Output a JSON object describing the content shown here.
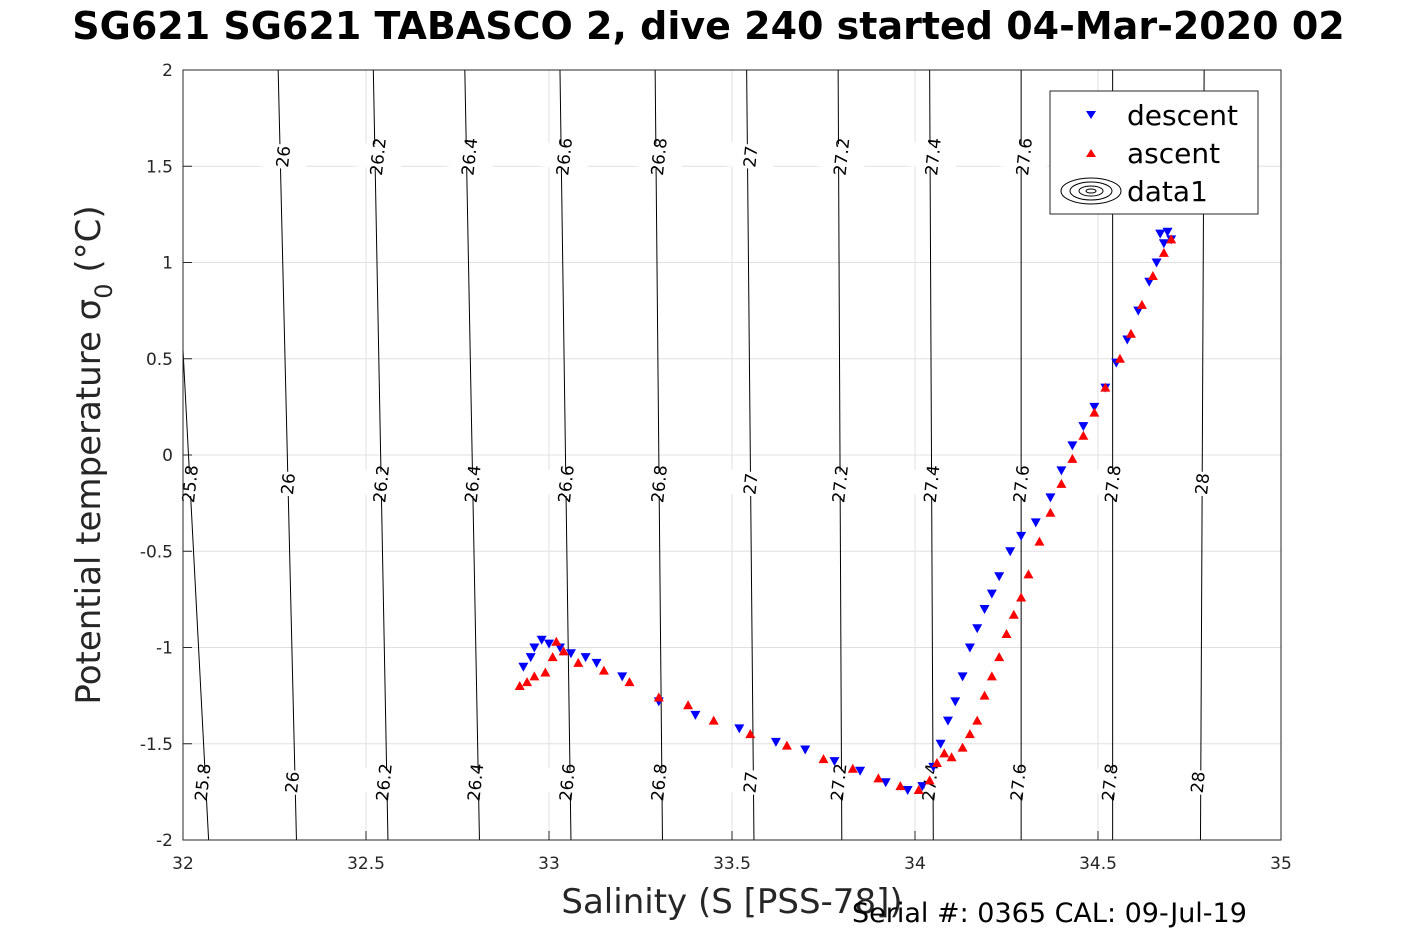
{
  "chart_data": {
    "type": "scatter",
    "title": "SG621 SG621 TABASCO 2, dive 240 started 04-Mar-2020 02",
    "xlabel": "Salinity (S [PSS-78])",
    "ylabel_main": "Potential temperature σ",
    "ylabel_sub": "0",
    "ylabel_unit": " (°C)",
    "xlim": [
      32,
      35
    ],
    "ylim": [
      -2,
      2
    ],
    "x_ticks": [
      32,
      32.5,
      33,
      33.5,
      34,
      34.5,
      35
    ],
    "x_tick_labels": [
      "32",
      "32.5",
      "33",
      "33.5",
      "34",
      "34.5",
      "35"
    ],
    "y_ticks": [
      -2,
      -1.5,
      -1,
      -0.5,
      0,
      0.5,
      1,
      1.5,
      2
    ],
    "y_tick_labels": [
      "-2",
      "-1.5",
      "-1",
      "-0.5",
      "0",
      "0.5",
      "1",
      "1.5",
      "2"
    ],
    "grid": true,
    "legend_position": "top-right",
    "contours": {
      "levels": [
        25.8,
        26.0,
        26.2,
        26.4,
        26.6,
        26.8,
        27.0,
        27.2,
        27.4,
        27.6,
        27.8,
        28.0
      ],
      "labels": [
        "25.8",
        "26",
        "26.2",
        "26.4",
        "26.6",
        "26.8",
        "27",
        "27.2",
        "27.4",
        "27.6",
        "27.8",
        "28"
      ],
      "x_at_bottom": [
        32.07,
        32.31,
        32.56,
        32.81,
        33.06,
        33.31,
        33.56,
        33.8,
        34.05,
        34.29,
        34.54,
        34.78
      ],
      "x_at_top": [
        31.96,
        32.26,
        32.52,
        32.77,
        33.03,
        33.29,
        33.54,
        33.79,
        34.04,
        34.29,
        34.54,
        34.79
      ],
      "label_y": [
        1.55,
        -0.15,
        -1.7
      ],
      "label_offset": [
        0.008,
        0.0,
        -0.008
      ],
      "color": "#000000"
    },
    "series": [
      {
        "name": "descent",
        "marker": "triangle-down",
        "color": "#0000ff",
        "points": [
          [
            32.93,
            -1.1
          ],
          [
            32.95,
            -1.05
          ],
          [
            32.96,
            -1.0
          ],
          [
            32.98,
            -0.96
          ],
          [
            33.0,
            -0.98
          ],
          [
            33.03,
            -1.0
          ],
          [
            33.06,
            -1.03
          ],
          [
            33.1,
            -1.05
          ],
          [
            33.13,
            -1.08
          ],
          [
            33.2,
            -1.15
          ],
          [
            33.3,
            -1.28
          ],
          [
            33.4,
            -1.35
          ],
          [
            33.52,
            -1.42
          ],
          [
            33.62,
            -1.49
          ],
          [
            33.7,
            -1.53
          ],
          [
            33.78,
            -1.59
          ],
          [
            33.85,
            -1.64
          ],
          [
            33.92,
            -1.7
          ],
          [
            33.98,
            -1.74
          ],
          [
            34.02,
            -1.72
          ],
          [
            34.05,
            -1.62
          ],
          [
            34.07,
            -1.5
          ],
          [
            34.09,
            -1.38
          ],
          [
            34.11,
            -1.28
          ],
          [
            34.13,
            -1.15
          ],
          [
            34.15,
            -1.0
          ],
          [
            34.17,
            -0.9
          ],
          [
            34.19,
            -0.8
          ],
          [
            34.21,
            -0.72
          ],
          [
            34.23,
            -0.63
          ],
          [
            34.26,
            -0.5
          ],
          [
            34.29,
            -0.42
          ],
          [
            34.33,
            -0.35
          ],
          [
            34.37,
            -0.22
          ],
          [
            34.4,
            -0.08
          ],
          [
            34.43,
            0.05
          ],
          [
            34.46,
            0.15
          ],
          [
            34.49,
            0.25
          ],
          [
            34.52,
            0.35
          ],
          [
            34.55,
            0.48
          ],
          [
            34.58,
            0.6
          ],
          [
            34.61,
            0.75
          ],
          [
            34.64,
            0.9
          ],
          [
            34.66,
            1.0
          ],
          [
            34.68,
            1.1
          ],
          [
            34.69,
            1.16
          ],
          [
            34.67,
            1.15
          ],
          [
            34.7,
            1.12
          ]
        ]
      },
      {
        "name": "ascent",
        "marker": "triangle-up",
        "color": "#ff0000",
        "points": [
          [
            32.92,
            -1.2
          ],
          [
            32.94,
            -1.18
          ],
          [
            32.96,
            -1.15
          ],
          [
            32.99,
            -1.13
          ],
          [
            33.01,
            -1.05
          ],
          [
            33.02,
            -0.97
          ],
          [
            33.04,
            -1.02
          ],
          [
            33.08,
            -1.08
          ],
          [
            33.15,
            -1.12
          ],
          [
            33.22,
            -1.18
          ],
          [
            33.3,
            -1.26
          ],
          [
            33.38,
            -1.3
          ],
          [
            33.45,
            -1.38
          ],
          [
            33.55,
            -1.45
          ],
          [
            33.65,
            -1.51
          ],
          [
            33.75,
            -1.58
          ],
          [
            33.83,
            -1.63
          ],
          [
            33.9,
            -1.68
          ],
          [
            33.96,
            -1.72
          ],
          [
            34.01,
            -1.74
          ],
          [
            34.04,
            -1.69
          ],
          [
            34.06,
            -1.6
          ],
          [
            34.08,
            -1.55
          ],
          [
            34.1,
            -1.57
          ],
          [
            34.13,
            -1.52
          ],
          [
            34.15,
            -1.45
          ],
          [
            34.17,
            -1.38
          ],
          [
            34.19,
            -1.25
          ],
          [
            34.21,
            -1.15
          ],
          [
            34.23,
            -1.05
          ],
          [
            34.25,
            -0.93
          ],
          [
            34.27,
            -0.83
          ],
          [
            34.29,
            -0.74
          ],
          [
            34.31,
            -0.62
          ],
          [
            34.34,
            -0.45
          ],
          [
            34.37,
            -0.3
          ],
          [
            34.4,
            -0.15
          ],
          [
            34.43,
            -0.02
          ],
          [
            34.46,
            0.1
          ],
          [
            34.49,
            0.22
          ],
          [
            34.52,
            0.35
          ],
          [
            34.56,
            0.5
          ],
          [
            34.59,
            0.63
          ],
          [
            34.62,
            0.78
          ],
          [
            34.65,
            0.93
          ],
          [
            34.68,
            1.05
          ],
          [
            34.7,
            1.12
          ]
        ]
      },
      {
        "name": "data1",
        "marker": "contour-legend-only",
        "color": "#000000",
        "points": []
      }
    ]
  },
  "footer": {
    "serial_text": "Serial #: 0365  CAL: 09-Jul-19"
  }
}
